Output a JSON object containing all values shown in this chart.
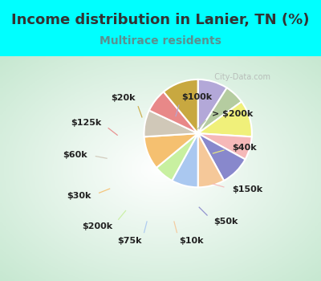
{
  "title": "Income distribution in Lanier, TN (%)",
  "subtitle": "Multirace residents",
  "title_color": "#333333",
  "subtitle_color": "#5a9090",
  "background_outer": "#00ffff",
  "background_inner_top": "#d0ede0",
  "background_inner_bottom": "#ffffff",
  "watermark": "City-Data.com",
  "slices": [
    {
      "label": "$100k",
      "value": 9,
      "color": "#b3a8d8"
    },
    {
      "label": "> $200k",
      "value": 6,
      "color": "#b5cca0"
    },
    {
      "label": "$40k",
      "value": 11,
      "color": "#f0f07a"
    },
    {
      "label": "$150k",
      "value": 7,
      "color": "#f5b8b8"
    },
    {
      "label": "$50k",
      "value": 9,
      "color": "#8888cc"
    },
    {
      "label": "$10k",
      "value": 8,
      "color": "#f5c899"
    },
    {
      "label": "$75k",
      "value": 8,
      "color": "#aac8f0"
    },
    {
      "label": "$200k",
      "value": 6,
      "color": "#c8f0a0"
    },
    {
      "label": "$30k",
      "value": 10,
      "color": "#f5c070"
    },
    {
      "label": "$60k",
      "value": 8,
      "color": "#d0c8b8"
    },
    {
      "label": "$125k",
      "value": 7,
      "color": "#e88888"
    },
    {
      "label": "$20k",
      "value": 11,
      "color": "#c8a840"
    }
  ],
  "label_fontsize": 8.0,
  "title_fontsize": 13,
  "subtitle_fontsize": 10
}
